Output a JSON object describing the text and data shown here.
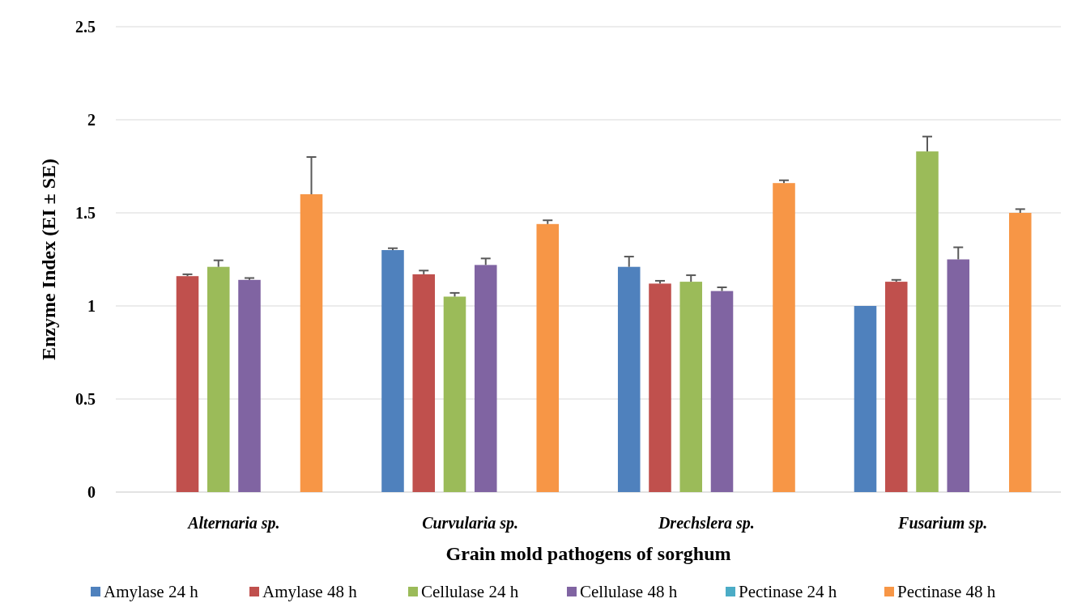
{
  "chart_data": {
    "type": "bar",
    "xlabel": "Grain mold pathogens of sorghum",
    "ylabel": "Enzyme Index (EI ± SE)",
    "categories": [
      "Alternaria sp.",
      "Curvularia sp.",
      "Drechslera sp.",
      "Fusarium sp."
    ],
    "series": [
      {
        "name": "Amylase 24 h",
        "color": "#4f81bd",
        "values": [
          null,
          1.3,
          1.21,
          1.0
        ],
        "errors": [
          null,
          0.01,
          0.055,
          null
        ]
      },
      {
        "name": "Amylase 48 h",
        "color": "#c0504d",
        "values": [
          1.16,
          1.17,
          1.12,
          1.13
        ],
        "errors": [
          0.01,
          0.02,
          0.015,
          0.01
        ]
      },
      {
        "name": "Cellulase 24 h",
        "color": "#9bbb59",
        "values": [
          1.21,
          1.05,
          1.13,
          1.83
        ],
        "errors": [
          0.035,
          0.02,
          0.035,
          0.08
        ]
      },
      {
        "name": "Cellulase 48 h",
        "color": "#8064a2",
        "values": [
          1.14,
          1.22,
          1.08,
          1.25
        ],
        "errors": [
          0.01,
          0.035,
          0.02,
          0.065
        ]
      },
      {
        "name": "Pectinase 24 h",
        "color": "#4bacc6",
        "values": [
          null,
          null,
          null,
          null
        ]
      },
      {
        "name": "Pectinase 48 h",
        "color": "#f79646",
        "values": [
          1.6,
          1.44,
          1.66,
          1.5
        ],
        "errors": [
          0.2,
          0.02,
          0.015,
          0.02
        ]
      }
    ],
    "ylim": [
      0,
      2.5
    ],
    "yticks": [
      0,
      0.5,
      1,
      1.5,
      2,
      2.5
    ],
    "grid": "y",
    "legend": "bottom"
  }
}
